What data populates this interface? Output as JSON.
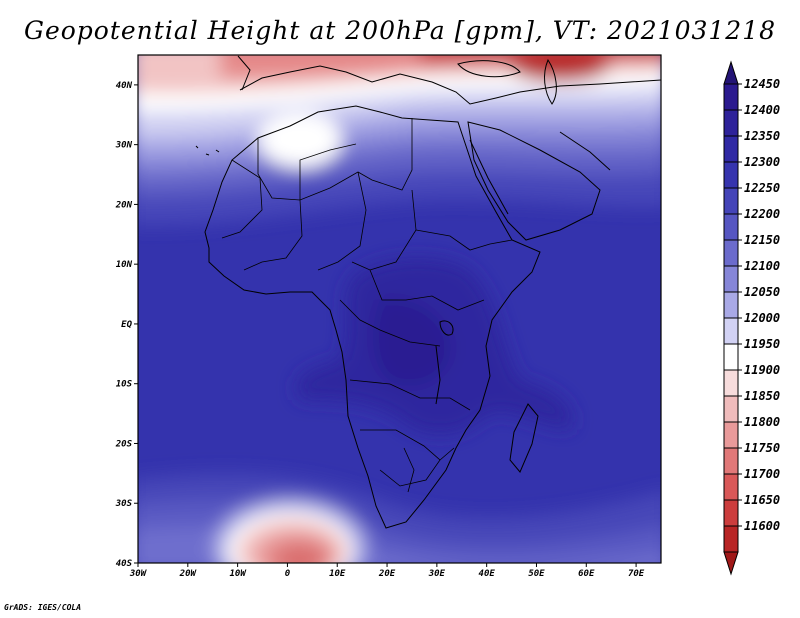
{
  "title": "Geopotential Height at 200hPa [gpm], VT: 2021031218",
  "credit": "GrADS: IGES/COLA",
  "map": {
    "projection": "latlon",
    "lon_range": [
      -30,
      75
    ],
    "lat_range": [
      -40,
      45
    ],
    "x_ticks": [
      {
        "lon": -30,
        "label": "30W"
      },
      {
        "lon": -20,
        "label": "20W"
      },
      {
        "lon": -10,
        "label": "10W"
      },
      {
        "lon": 0,
        "label": "0"
      },
      {
        "lon": 10,
        "label": "10E"
      },
      {
        "lon": 20,
        "label": "20E"
      },
      {
        "lon": 30,
        "label": "30E"
      },
      {
        "lon": 40,
        "label": "40E"
      },
      {
        "lon": 50,
        "label": "50E"
      },
      {
        "lon": 60,
        "label": "60E"
      },
      {
        "lon": 70,
        "label": "70E"
      }
    ],
    "y_ticks": [
      {
        "lat": 40,
        "label": "40N"
      },
      {
        "lat": 30,
        "label": "30N"
      },
      {
        "lat": 20,
        "label": "20N"
      },
      {
        "lat": 10,
        "label": "10N"
      },
      {
        "lat": 0,
        "label": "EQ"
      },
      {
        "lat": -10,
        "label": "10S"
      },
      {
        "lat": -20,
        "label": "20S"
      },
      {
        "lat": -30,
        "label": "30S"
      },
      {
        "lat": -40,
        "label": "40S"
      }
    ]
  },
  "colorbar": {
    "orientation": "vertical",
    "levels": [
      {
        "label": "12450",
        "color": "#2b1a8f"
      },
      {
        "label": "12400",
        "color": "#2e229a"
      },
      {
        "label": "12350",
        "color": "#3029a4"
      },
      {
        "label": "12300",
        "color": "#3634ae"
      },
      {
        "label": "12250",
        "color": "#4444b8"
      },
      {
        "label": "12200",
        "color": "#5656c2"
      },
      {
        "label": "12150",
        "color": "#6b6bcc"
      },
      {
        "label": "12100",
        "color": "#8686d8"
      },
      {
        "label": "12050",
        "color": "#a9a9e6"
      },
      {
        "label": "12000",
        "color": "#d2d2f4"
      },
      {
        "label": "11950",
        "color": "#ffffff"
      },
      {
        "label": "11900",
        "color": "#f7dcdc"
      },
      {
        "label": "11850",
        "color": "#f0bcbc"
      },
      {
        "label": "11800",
        "color": "#e99a9a"
      },
      {
        "label": "11750",
        "color": "#e17878"
      },
      {
        "label": "11700",
        "color": "#d95858"
      },
      {
        "label": "11650",
        "color": "#cc3d3d"
      },
      {
        "label": "11600",
        "color": "#b82525"
      }
    ],
    "over_color": "#231475",
    "under_color": "#a01818"
  }
}
